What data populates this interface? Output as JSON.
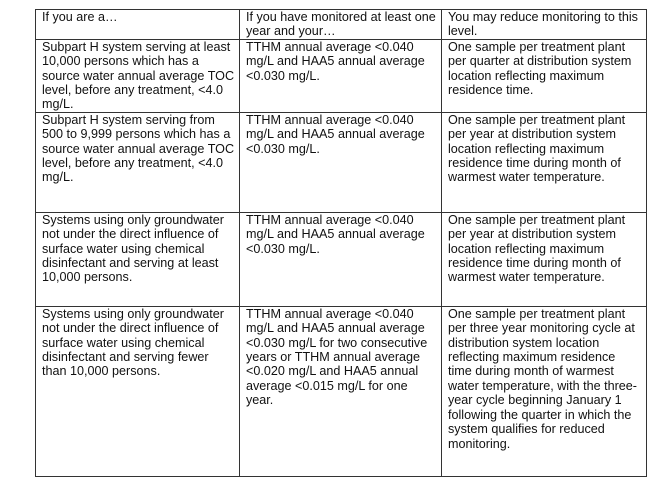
{
  "table": {
    "headers": [
      "If you are a…",
      "If you have monitored at least one year and your…",
      "You may reduce monitoring to this level."
    ],
    "rows": [
      [
        "Subpart H system serving at least 10,000 persons which has a source water annual average TOC level, before any treatment, <4.0 mg/L.",
        "TTHM annual average <0.040 mg/L and HAA5 annual average <0.030 mg/L.",
        "One sample per treatment plant per quarter at distribution system location reflecting maximum residence time."
      ],
      [
        "Subpart H system serving from 500 to 9,999 persons which has a source water annual average TOC level, before any treatment, <4.0 mg/L.",
        "TTHM annual average <0.040 mg/L and HAA5 annual average <0.030 mg/L.",
        "One sample per treatment plant per year at distribution system location reflecting maximum residence time during month of warmest water temperature."
      ],
      [
        "Systems using only groundwater not under the direct influence of surface water using chemical disinfectant and serving at least 10,000 persons.",
        "TTHM annual average <0.040 mg/L and HAA5 annual average <0.030 mg/L.",
        "One sample per treatment plant per year at distribution system location reflecting maximum residence time during month of warmest water temperature."
      ],
      [
        "Systems using only groundwater not under the direct influence of surface water using chemical disinfectant and serving fewer than 10,000 persons.",
        "TTHM annual average <0.040 mg/L and HAA5 annual average <0.030 mg/L for two consecutive years or TTHM annual average <0.020 mg/L and HAA5 annual average <0.015 mg/L for one year.",
        "One sample per treatment plant per three year monitoring cycle at distribution system location reflecting maximum residence time during month of warmest water temperature, with the three-year cycle beginning January 1 following the quarter in which the system qualifies for reduced monitoring."
      ]
    ]
  }
}
